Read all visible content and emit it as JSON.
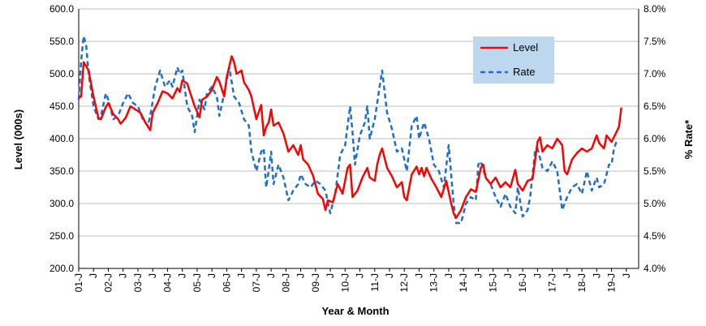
{
  "chart_data": {
    "type": "line",
    "title": "",
    "xlabel": "Year & Month",
    "ylabel_left": "Level (000s)",
    "ylabel_right": "% Rate*",
    "ylim_left": [
      200,
      600
    ],
    "ylim_right": [
      4.0,
      8.0
    ],
    "yticks_left": [
      "200.0",
      "250.0",
      "300.0",
      "350.0",
      "400.0",
      "450.0",
      "500.0",
      "550.0",
      "600.0"
    ],
    "yticks_right": [
      "4.0%",
      "4.5%",
      "5.0%",
      "5.5%",
      "6.0%",
      "6.5%",
      "7.0%",
      "7.5%",
      "8.0%"
    ],
    "x_tick_labels": [
      "01-J",
      "J",
      "02-J",
      "J",
      "03-J",
      "J",
      "04-J",
      "J",
      "05-J",
      "J",
      "06-J",
      "J",
      "07-J",
      "J",
      "08-J",
      "J",
      "09-J",
      "J",
      "10-J",
      "J",
      "11-J",
      "J",
      "12-J",
      "J",
      "13-J",
      "J",
      "14-J",
      "J",
      "15-J",
      "J",
      "16-J",
      "J",
      "17-J",
      "J",
      "18-J",
      "J",
      "19-J",
      "J"
    ],
    "x_start": "2001-01",
    "x_end": "2019-12",
    "grid": true,
    "legend_position": "top-right",
    "colors": {
      "level": "#ff0000",
      "rate": "#1f6fc6",
      "legend_bg": "#bdd7ee",
      "grid": "#bfbfbf"
    },
    "series": [
      {
        "name": "Level",
        "axis": "left",
        "style": "solid",
        "keypoints": [
          [
            "2001-01",
            463
          ],
          [
            "2001-02",
            465
          ],
          [
            "2001-03",
            518
          ],
          [
            "2001-04",
            512
          ],
          [
            "2001-05",
            505
          ],
          [
            "2001-07",
            465
          ],
          [
            "2001-09",
            432
          ],
          [
            "2001-10",
            430
          ],
          [
            "2001-12",
            449
          ],
          [
            "2002-01",
            455
          ],
          [
            "2002-03",
            438
          ],
          [
            "2002-05",
            430
          ],
          [
            "2002-06",
            423
          ],
          [
            "2002-08",
            432
          ],
          [
            "2002-10",
            450
          ],
          [
            "2002-12",
            445
          ],
          [
            "2003-02",
            440
          ],
          [
            "2003-04",
            425
          ],
          [
            "2003-06",
            413
          ],
          [
            "2003-07",
            440
          ],
          [
            "2003-09",
            455
          ],
          [
            "2003-11",
            473
          ],
          [
            "2004-01",
            470
          ],
          [
            "2004-03",
            462
          ],
          [
            "2004-05",
            478
          ],
          [
            "2004-06",
            472
          ],
          [
            "2004-07",
            490
          ],
          [
            "2004-09",
            485
          ],
          [
            "2004-10",
            473
          ],
          [
            "2004-12",
            450
          ],
          [
            "2005-02",
            433
          ],
          [
            "2005-03",
            460
          ],
          [
            "2005-05",
            465
          ],
          [
            "2005-07",
            475
          ],
          [
            "2005-09",
            495
          ],
          [
            "2005-10",
            488
          ],
          [
            "2005-12",
            465
          ],
          [
            "2006-01",
            495
          ],
          [
            "2006-03",
            527
          ],
          [
            "2006-04",
            518
          ],
          [
            "2006-05",
            500
          ],
          [
            "2006-07",
            505
          ],
          [
            "2006-08",
            487
          ],
          [
            "2006-10",
            475
          ],
          [
            "2006-11",
            465
          ],
          [
            "2007-01",
            430
          ],
          [
            "2007-03",
            452
          ],
          [
            "2007-04",
            405
          ],
          [
            "2007-05",
            418
          ],
          [
            "2007-06",
            425
          ],
          [
            "2007-07",
            445
          ],
          [
            "2007-08",
            420
          ],
          [
            "2007-10",
            425
          ],
          [
            "2007-12",
            408
          ],
          [
            "2008-02",
            380
          ],
          [
            "2008-04",
            390
          ],
          [
            "2008-06",
            375
          ],
          [
            "2008-07",
            390
          ],
          [
            "2008-08",
            368
          ],
          [
            "2008-10",
            360
          ],
          [
            "2008-12",
            343
          ],
          [
            "2009-02",
            315
          ],
          [
            "2009-04",
            307
          ],
          [
            "2009-05",
            290
          ],
          [
            "2009-06",
            305
          ],
          [
            "2009-08",
            302
          ],
          [
            "2009-10",
            330
          ],
          [
            "2009-12",
            315
          ],
          [
            "2010-02",
            355
          ],
          [
            "2010-03",
            360
          ],
          [
            "2010-04",
            310
          ],
          [
            "2010-06",
            320
          ],
          [
            "2010-08",
            340
          ],
          [
            "2010-10",
            355
          ],
          [
            "2010-11",
            340
          ],
          [
            "2011-01",
            335
          ],
          [
            "2011-02",
            360
          ],
          [
            "2011-03",
            375
          ],
          [
            "2011-04",
            385
          ],
          [
            "2011-06",
            355
          ],
          [
            "2011-08",
            342
          ],
          [
            "2011-10",
            325
          ],
          [
            "2011-12",
            333
          ],
          [
            "2012-01",
            310
          ],
          [
            "2012-02",
            305
          ],
          [
            "2012-04",
            345
          ],
          [
            "2012-06",
            357
          ],
          [
            "2012-07",
            345
          ],
          [
            "2012-08",
            355
          ],
          [
            "2012-09",
            342
          ],
          [
            "2012-10",
            355
          ],
          [
            "2012-12",
            338
          ],
          [
            "2013-02",
            325
          ],
          [
            "2013-04",
            310
          ],
          [
            "2013-06",
            335
          ],
          [
            "2013-08",
            300
          ],
          [
            "2013-09",
            285
          ],
          [
            "2013-10",
            278
          ],
          [
            "2013-12",
            290
          ],
          [
            "2014-02",
            310
          ],
          [
            "2014-04",
            322
          ],
          [
            "2014-06",
            318
          ],
          [
            "2014-08",
            355
          ],
          [
            "2014-09",
            360
          ],
          [
            "2014-10",
            340
          ],
          [
            "2014-12",
            330
          ],
          [
            "2015-02",
            340
          ],
          [
            "2015-04",
            325
          ],
          [
            "2015-06",
            333
          ],
          [
            "2015-08",
            325
          ],
          [
            "2015-10",
            352
          ],
          [
            "2015-11",
            330
          ],
          [
            "2016-01",
            320
          ],
          [
            "2016-03",
            335
          ],
          [
            "2016-05",
            338
          ],
          [
            "2016-07",
            395
          ],
          [
            "2016-08",
            402
          ],
          [
            "2016-09",
            380
          ],
          [
            "2016-11",
            390
          ],
          [
            "2017-01",
            385
          ],
          [
            "2017-03",
            400
          ],
          [
            "2017-05",
            390
          ],
          [
            "2017-06",
            350
          ],
          [
            "2017-07",
            345
          ],
          [
            "2017-09",
            368
          ],
          [
            "2017-11",
            378
          ],
          [
            "2018-01",
            385
          ],
          [
            "2018-03",
            380
          ],
          [
            "2018-05",
            385
          ],
          [
            "2018-07",
            405
          ],
          [
            "2018-08",
            393
          ],
          [
            "2018-10",
            385
          ],
          [
            "2018-11",
            405
          ],
          [
            "2019-01",
            395
          ],
          [
            "2019-03",
            410
          ],
          [
            "2019-04",
            418
          ],
          [
            "2019-05",
            448
          ]
        ]
      },
      {
        "name": "Rate",
        "axis": "right",
        "style": "dashed",
        "keypoints": [
          [
            "2001-01",
            6.6
          ],
          [
            "2001-02",
            7.2
          ],
          [
            "2001-03",
            7.58
          ],
          [
            "2001-04",
            7.45
          ],
          [
            "2001-05",
            7.0
          ],
          [
            "2001-07",
            6.5
          ],
          [
            "2001-09",
            6.3
          ],
          [
            "2001-10",
            6.35
          ],
          [
            "2001-12",
            6.7
          ],
          [
            "2002-01",
            6.6
          ],
          [
            "2002-03",
            6.3
          ],
          [
            "2002-05",
            6.35
          ],
          [
            "2002-07",
            6.55
          ],
          [
            "2002-09",
            6.7
          ],
          [
            "2002-11",
            6.55
          ],
          [
            "2003-01",
            6.5
          ],
          [
            "2003-03",
            6.3
          ],
          [
            "2003-05",
            6.2
          ],
          [
            "2003-06",
            6.35
          ],
          [
            "2003-08",
            6.8
          ],
          [
            "2003-10",
            7.05
          ],
          [
            "2003-12",
            6.8
          ],
          [
            "2004-02",
            6.9
          ],
          [
            "2004-03",
            6.8
          ],
          [
            "2004-05",
            7.1
          ],
          [
            "2004-06",
            7.0
          ],
          [
            "2004-07",
            7.05
          ],
          [
            "2004-09",
            6.5
          ],
          [
            "2004-11",
            6.35
          ],
          [
            "2004-12",
            6.1
          ],
          [
            "2005-02",
            6.6
          ],
          [
            "2005-04",
            6.45
          ],
          [
            "2005-05",
            6.7
          ],
          [
            "2005-07",
            6.8
          ],
          [
            "2005-09",
            6.65
          ],
          [
            "2005-10",
            6.35
          ],
          [
            "2005-12",
            6.7
          ],
          [
            "2006-02",
            7.1
          ],
          [
            "2006-04",
            6.65
          ],
          [
            "2006-06",
            6.55
          ],
          [
            "2006-08",
            6.3
          ],
          [
            "2006-10",
            6.2
          ],
          [
            "2006-11",
            5.8
          ],
          [
            "2007-01",
            5.5
          ],
          [
            "2007-03",
            5.8
          ],
          [
            "2007-04",
            5.85
          ],
          [
            "2007-05",
            5.25
          ],
          [
            "2007-06",
            5.5
          ],
          [
            "2007-07",
            5.8
          ],
          [
            "2007-08",
            5.3
          ],
          [
            "2007-10",
            5.6
          ],
          [
            "2007-12",
            5.4
          ],
          [
            "2008-02",
            5.05
          ],
          [
            "2008-04",
            5.2
          ],
          [
            "2008-06",
            5.3
          ],
          [
            "2008-07",
            5.45
          ],
          [
            "2008-09",
            5.3
          ],
          [
            "2008-11",
            5.25
          ],
          [
            "2009-01",
            5.35
          ],
          [
            "2009-03",
            5.3
          ],
          [
            "2009-05",
            5.2
          ],
          [
            "2009-07",
            4.85
          ],
          [
            "2009-09",
            5.15
          ],
          [
            "2009-11",
            5.75
          ],
          [
            "2010-01",
            5.9
          ],
          [
            "2010-03",
            6.5
          ],
          [
            "2010-04",
            6.1
          ],
          [
            "2010-05",
            5.6
          ],
          [
            "2010-07",
            6.05
          ],
          [
            "2010-09",
            6.25
          ],
          [
            "2010-10",
            6.5
          ],
          [
            "2010-11",
            6.0
          ],
          [
            "2011-01",
            6.3
          ],
          [
            "2011-03",
            6.8
          ],
          [
            "2011-04",
            7.05
          ],
          [
            "2011-06",
            6.4
          ],
          [
            "2011-08",
            6.15
          ],
          [
            "2011-10",
            5.8
          ],
          [
            "2011-12",
            5.85
          ],
          [
            "2012-02",
            5.5
          ],
          [
            "2012-04",
            6.2
          ],
          [
            "2012-06",
            6.35
          ],
          [
            "2012-07",
            6.0
          ],
          [
            "2012-09",
            6.25
          ],
          [
            "2012-11",
            6.0
          ],
          [
            "2013-01",
            5.6
          ],
          [
            "2013-03",
            5.5
          ],
          [
            "2013-05",
            5.25
          ],
          [
            "2013-07",
            5.9
          ],
          [
            "2013-09",
            5.0
          ],
          [
            "2013-10",
            4.7
          ],
          [
            "2013-12",
            4.7
          ],
          [
            "2014-02",
            5.0
          ],
          [
            "2014-04",
            5.1
          ],
          [
            "2014-06",
            5.05
          ],
          [
            "2014-07",
            5.6
          ],
          [
            "2014-08",
            5.65
          ],
          [
            "2014-10",
            5.4
          ],
          [
            "2014-12",
            5.3
          ],
          [
            "2015-02",
            5.1
          ],
          [
            "2015-04",
            4.95
          ],
          [
            "2015-06",
            5.15
          ],
          [
            "2015-08",
            4.95
          ],
          [
            "2015-10",
            4.85
          ],
          [
            "2015-11",
            5.25
          ],
          [
            "2016-01",
            4.8
          ],
          [
            "2016-03",
            4.9
          ],
          [
            "2016-04",
            5.1
          ],
          [
            "2016-06",
            5.8
          ],
          [
            "2016-07",
            5.85
          ],
          [
            "2016-09",
            5.55
          ],
          [
            "2016-11",
            5.5
          ],
          [
            "2017-01",
            5.65
          ],
          [
            "2017-03",
            5.5
          ],
          [
            "2017-05",
            4.9
          ],
          [
            "2017-07",
            5.1
          ],
          [
            "2017-09",
            5.25
          ],
          [
            "2017-11",
            5.3
          ],
          [
            "2018-01",
            5.15
          ],
          [
            "2018-03",
            5.5
          ],
          [
            "2018-05",
            5.2
          ],
          [
            "2018-07",
            5.4
          ],
          [
            "2018-08",
            5.25
          ],
          [
            "2018-10",
            5.3
          ],
          [
            "2018-12",
            5.6
          ],
          [
            "2019-01",
            5.6
          ],
          [
            "2019-02",
            5.85
          ],
          [
            "2019-03",
            5.95
          ]
        ]
      }
    ]
  }
}
